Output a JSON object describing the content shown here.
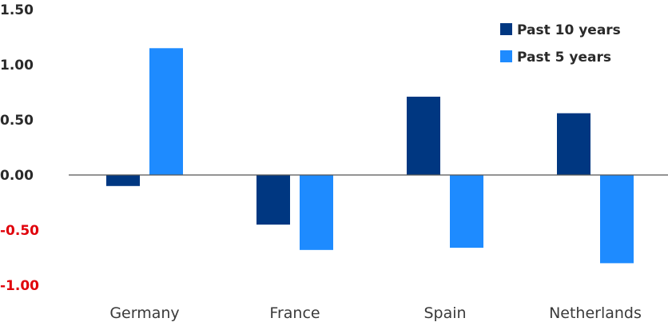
{
  "chart_data": {
    "type": "bar",
    "categories": [
      "Germany",
      "France",
      "Spain",
      "Netherlands"
    ],
    "series": [
      {
        "name": "Past 10 years",
        "color": "#003781",
        "values": [
          -0.1,
          -0.45,
          0.71,
          0.56
        ]
      },
      {
        "name": "Past 5 years",
        "color": "#1e8bff",
        "values": [
          1.15,
          -0.68,
          -0.66,
          -0.8
        ]
      }
    ],
    "y_ticks": [
      {
        "value": 1.5,
        "label": "1.50",
        "color": "#2a2a2a"
      },
      {
        "value": 1.0,
        "label": "1.00",
        "color": "#2a2a2a"
      },
      {
        "value": 0.5,
        "label": "0.50",
        "color": "#2a2a2a"
      },
      {
        "value": 0.0,
        "label": "0.00",
        "color": "#2a2a2a"
      },
      {
        "value": -0.5,
        "label": "-0.50",
        "color": "#e0000a"
      },
      {
        "value": -1.0,
        "label": "-1.00",
        "color": "#e0000a"
      }
    ],
    "ylim": [
      -1.0,
      1.5
    ],
    "grid": false,
    "legend_position": "top-right",
    "title": "",
    "xlabel": "",
    "ylabel": ""
  }
}
